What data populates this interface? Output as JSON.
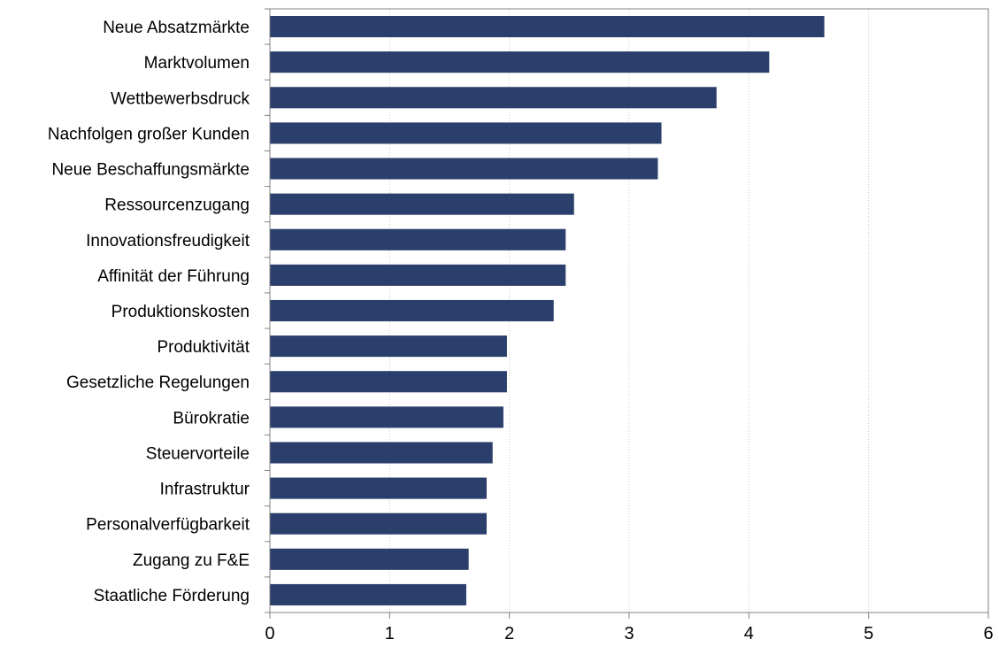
{
  "chart_data": {
    "type": "bar",
    "orientation": "horizontal",
    "title": "",
    "xlabel": "",
    "ylabel": "",
    "categories": [
      "Neue Absatzmärkte",
      "Marktvolumen",
      "Wettbewerbsdruck",
      "Nachfolgen großer Kunden",
      "Neue Beschaffungsmärkte",
      "Ressourcenzugang",
      "Innovationsfreudigkeit",
      "Affinität der Führung",
      "Produktionskosten",
      "Produktivität",
      "Gesetzliche Regelungen",
      "Bürokratie",
      "Steuervorteile",
      "Infrastruktur",
      "Personalverfügbarkeit",
      "Zugang zu F&E",
      "Staatliche Förderung"
    ],
    "values": [
      4.63,
      4.17,
      3.73,
      3.27,
      3.24,
      2.54,
      2.47,
      2.47,
      2.37,
      1.98,
      1.98,
      1.95,
      1.86,
      1.81,
      1.81,
      1.66,
      1.64
    ],
    "xlim": [
      0,
      6
    ],
    "xticks": [
      0,
      1,
      2,
      3,
      4,
      5,
      6
    ],
    "grid": "vertical gridlines",
    "legend": "none",
    "colors": {
      "bar": "#2b3f6c",
      "grid": "#c8c8c8",
      "axis": "#808080"
    }
  }
}
